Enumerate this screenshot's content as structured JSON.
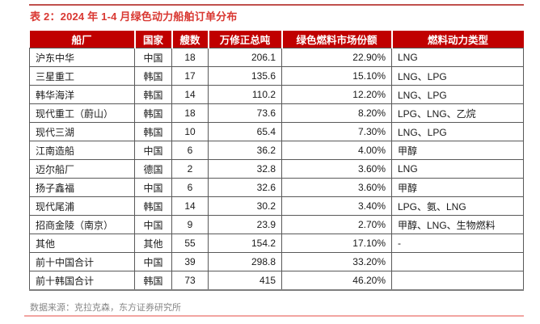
{
  "title": "表 2：2024 年 1-4 月绿色动力船舶订单分布",
  "table": {
    "headers": [
      "船厂",
      "国家",
      "艘数",
      "万修正总吨",
      "绿色燃料市场份额",
      "燃料动力类型"
    ],
    "column_names": [
      "shipyard",
      "country",
      "ship-count",
      "corrected-gross-tons",
      "market-share",
      "fuel-type"
    ],
    "rows": [
      [
        "沪东中华",
        "中国",
        "18",
        "206.1",
        "22.90%",
        "LNG"
      ],
      [
        "三星重工",
        "韩国",
        "17",
        "135.6",
        "15.10%",
        "LNG、LPG"
      ],
      [
        "韩华海洋",
        "韩国",
        "14",
        "110.2",
        "12.20%",
        "LNG、LPG"
      ],
      [
        "现代重工（蔚山）",
        "韩国",
        "18",
        "73.6",
        "8.20%",
        "LPG、LNG、乙烷"
      ],
      [
        "现代三湖",
        "韩国",
        "10",
        "65.4",
        "7.30%",
        "LNG、LPG"
      ],
      [
        "江南造船",
        "中国",
        "6",
        "36.2",
        "4.00%",
        "甲醇"
      ],
      [
        "迈尔船厂",
        "德国",
        "2",
        "32.8",
        "3.60%",
        "LNG"
      ],
      [
        "扬子鑫福",
        "中国",
        "6",
        "32.6",
        "3.60%",
        "甲醇"
      ],
      [
        "现代尾浦",
        "韩国",
        "14",
        "30.2",
        "3.40%",
        "LPG、氨、LNG"
      ],
      [
        "招商金陵（南京）",
        "中国",
        "9",
        "23.9",
        "2.70%",
        "甲醇、LNG、生物燃料"
      ],
      [
        "其他",
        "其他",
        "55",
        "154.2",
        "17.10%",
        "-"
      ],
      [
        "前十中国合计",
        "中国",
        "39",
        "298.8",
        "33.20%",
        ""
      ],
      [
        "前十韩国合计",
        "韩国",
        "73",
        "415",
        "46.20%",
        ""
      ]
    ]
  },
  "footer": {
    "source": "数据来源：克拉克森，东方证券研究所"
  },
  "colors": {
    "header_bg": "#C00000",
    "title_text": "#D93832",
    "top_line": "#C0504D",
    "bottom_line": "#F2A5A1",
    "border": "#595959",
    "body_text": "#1a1a1a",
    "footer_text": "#878787"
  }
}
